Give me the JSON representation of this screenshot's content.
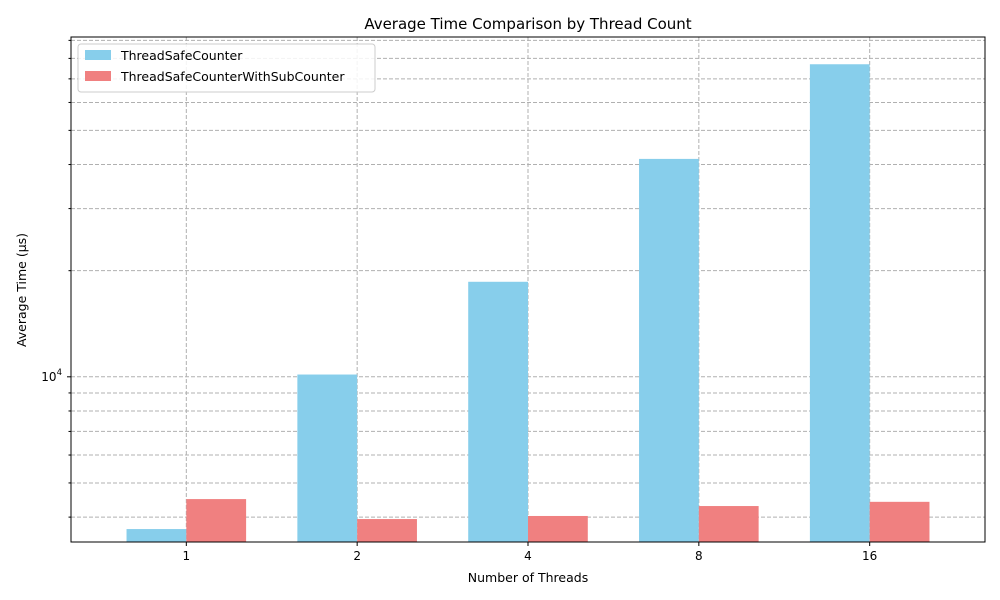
{
  "chart_data": {
    "type": "bar",
    "title": "Average Time Comparison by Thread Count",
    "xlabel": "Number of Threads",
    "ylabel": "Average Time (µs)",
    "yscale": "log",
    "categories": [
      "1",
      "2",
      "4",
      "8",
      "16"
    ],
    "series": [
      {
        "name": "ThreadSafeCounter",
        "color": "#87CEEB",
        "values": [
          3700,
          10150,
          18600,
          41500,
          77000
        ]
      },
      {
        "name": "ThreadSafeCounterWithSubCounter",
        "color": "#F08080",
        "values": [
          4500,
          3950,
          4030,
          4300,
          4420
        ]
      }
    ],
    "ylim": [
      3400,
      92000
    ],
    "ytick_major": [
      {
        "value": 10000,
        "base": "10",
        "exp": "4"
      }
    ],
    "ytick_minor": [
      4000,
      5000,
      6000,
      7000,
      8000,
      9000,
      20000,
      30000,
      40000,
      50000,
      60000,
      70000,
      80000,
      90000
    ],
    "grid": true,
    "legend_position": "upper-left"
  }
}
